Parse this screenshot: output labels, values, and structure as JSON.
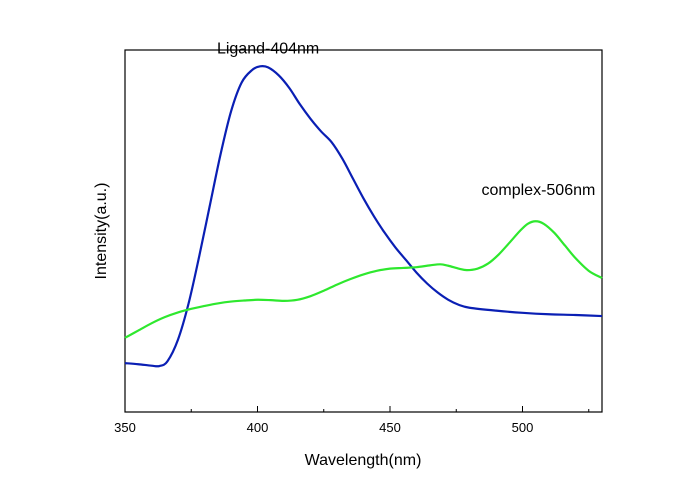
{
  "chart_data": {
    "type": "line",
    "title": "",
    "xlabel": "Wavelength(nm)",
    "ylabel": "Intensity(a.u.)",
    "xlim": [
      350,
      530
    ],
    "ylim": [
      0,
      1
    ],
    "grid": false,
    "legend": "none",
    "x_ticks": [
      350,
      400,
      450,
      500
    ],
    "y_ticks_shown": false,
    "series": [
      {
        "color": "#0a1fb4",
        "points": [
          [
            350,
            0.135
          ],
          [
            355,
            0.132
          ],
          [
            360,
            0.128
          ],
          [
            363,
            0.127
          ],
          [
            366,
            0.14
          ],
          [
            370,
            0.2
          ],
          [
            374,
            0.3
          ],
          [
            378,
            0.43
          ],
          [
            382,
            0.57
          ],
          [
            386,
            0.71
          ],
          [
            390,
            0.83
          ],
          [
            394,
            0.91
          ],
          [
            398,
            0.945
          ],
          [
            401,
            0.955
          ],
          [
            404,
            0.952
          ],
          [
            408,
            0.93
          ],
          [
            412,
            0.895
          ],
          [
            416,
            0.85
          ],
          [
            420,
            0.81
          ],
          [
            424,
            0.775
          ],
          [
            428,
            0.745
          ],
          [
            432,
            0.7
          ],
          [
            436,
            0.645
          ],
          [
            440,
            0.59
          ],
          [
            444,
            0.54
          ],
          [
            448,
            0.495
          ],
          [
            452,
            0.455
          ],
          [
            456,
            0.42
          ],
          [
            460,
            0.385
          ],
          [
            464,
            0.355
          ],
          [
            468,
            0.33
          ],
          [
            472,
            0.31
          ],
          [
            476,
            0.296
          ],
          [
            480,
            0.288
          ],
          [
            490,
            0.28
          ],
          [
            500,
            0.274
          ],
          [
            510,
            0.27
          ],
          [
            520,
            0.268
          ],
          [
            530,
            0.265
          ]
        ]
      },
      {
        "color": "#2ee82e",
        "points": [
          [
            350,
            0.205
          ],
          [
            355,
            0.225
          ],
          [
            360,
            0.245
          ],
          [
            365,
            0.262
          ],
          [
            370,
            0.275
          ],
          [
            375,
            0.285
          ],
          [
            380,
            0.293
          ],
          [
            385,
            0.3
          ],
          [
            390,
            0.305
          ],
          [
            395,
            0.308
          ],
          [
            400,
            0.31
          ],
          [
            405,
            0.309
          ],
          [
            410,
            0.307
          ],
          [
            415,
            0.31
          ],
          [
            420,
            0.32
          ],
          [
            425,
            0.335
          ],
          [
            430,
            0.352
          ],
          [
            435,
            0.367
          ],
          [
            440,
            0.38
          ],
          [
            445,
            0.39
          ],
          [
            450,
            0.396
          ],
          [
            455,
            0.398
          ],
          [
            460,
            0.4
          ],
          [
            465,
            0.405
          ],
          [
            469,
            0.408
          ],
          [
            472,
            0.404
          ],
          [
            476,
            0.396
          ],
          [
            479,
            0.392
          ],
          [
            483,
            0.396
          ],
          [
            487,
            0.41
          ],
          [
            491,
            0.435
          ],
          [
            495,
            0.467
          ],
          [
            499,
            0.5
          ],
          [
            502,
            0.52
          ],
          [
            505,
            0.527
          ],
          [
            508,
            0.52
          ],
          [
            512,
            0.495
          ],
          [
            516,
            0.46
          ],
          [
            520,
            0.425
          ],
          [
            525,
            0.39
          ],
          [
            530,
            0.37
          ]
        ]
      }
    ],
    "annotations": [
      {
        "text": "Ligand-404nm",
        "x": 404,
        "y": 0.99
      },
      {
        "text": "complex-506nm",
        "x": 506,
        "y": 0.6
      }
    ]
  }
}
